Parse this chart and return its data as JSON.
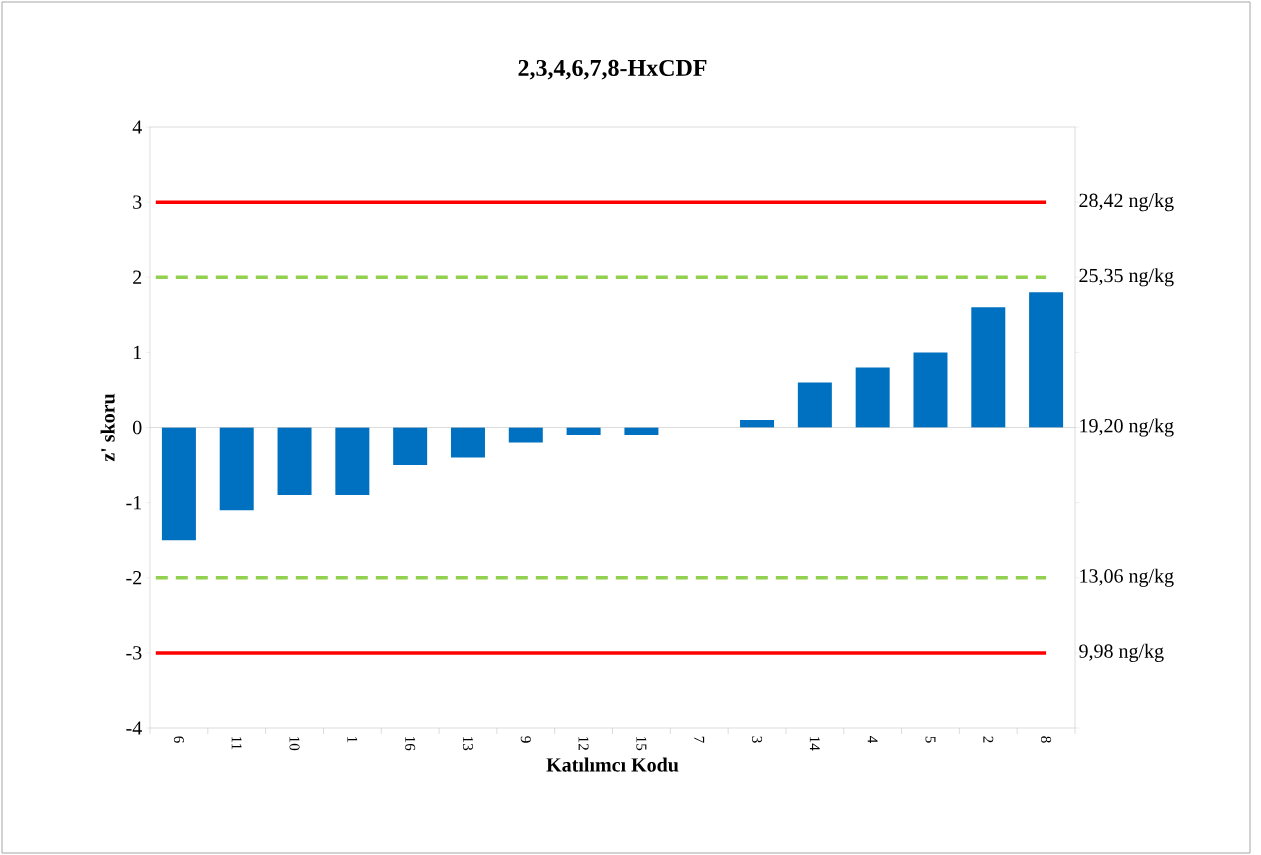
{
  "chart_data": {
    "type": "bar",
    "title": "2,3,4,6,7,8-HxCDF",
    "xlabel": "Katılımcı Kodu",
    "ylabel": "z' skoru",
    "categories": [
      "6",
      "11",
      "10",
      "1",
      "16",
      "13",
      "9",
      "12",
      "15",
      "7",
      "3",
      "14",
      "4",
      "5",
      "2",
      "8"
    ],
    "values": [
      -1.5,
      -1.1,
      -0.9,
      -0.9,
      -0.5,
      -0.4,
      -0.2,
      -0.1,
      -0.1,
      0,
      0.1,
      0.6,
      0.8,
      1.0,
      1.6,
      1.8
    ],
    "color": "#0070c0",
    "ylim": [
      -4,
      4
    ],
    "yticks": [
      -4,
      -3,
      -2,
      -1,
      0,
      1,
      2,
      3,
      4
    ],
    "grid": false,
    "ref_lines": [
      {
        "axis": "y",
        "value": 3,
        "label": "28,42 ng/kg",
        "color": "#ff0000",
        "line_style": "solid"
      },
      {
        "axis": "y",
        "value": 2,
        "label": "25,35 ng/kg",
        "color": "#92d050",
        "line_style": "dashed"
      },
      {
        "axis": "y",
        "value": -2,
        "label": "13,06 ng/kg",
        "color": "#92d050",
        "line_style": "dashed"
      },
      {
        "axis": "y",
        "value": -3,
        "label": "9,98 ng/kg",
        "color": "#ff0000",
        "line_style": "solid"
      }
    ],
    "annotations": [
      "19,20 ng/kg"
    ]
  }
}
